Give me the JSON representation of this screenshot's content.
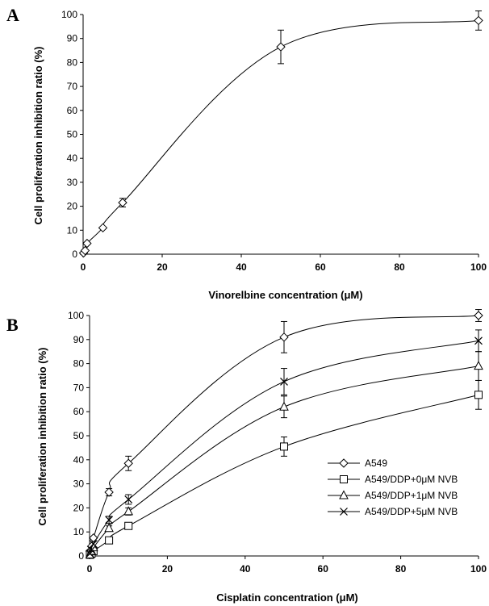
{
  "chart_data": [
    {
      "type": "line",
      "panel_label": "A",
      "title": "",
      "xlabel": "Vinorelbine concentration (μM)",
      "ylabel": "Cell proliferation inhibition ratio (%)",
      "xlim": [
        0,
        100
      ],
      "ylim": [
        0,
        100
      ],
      "xticks": [
        0,
        20,
        40,
        60,
        80,
        100
      ],
      "yticks": [
        0,
        10,
        20,
        30,
        40,
        50,
        60,
        70,
        80,
        90,
        100
      ],
      "grid": false,
      "legend": "none",
      "series": [
        {
          "marker": "diamond",
          "x": [
            0.1,
            0.5,
            1,
            5,
            10,
            50,
            100
          ],
          "y": [
            0.5,
            1.5,
            4.5,
            11,
            21.5,
            86.5,
            97.5
          ],
          "err": [
            0,
            0,
            0,
            0,
            1.8,
            7,
            4
          ]
        }
      ]
    },
    {
      "type": "line",
      "panel_label": "B",
      "title": "",
      "xlabel": "Cisplatin concentration (μM)",
      "ylabel": "Cell proliferation inhibition ratio (%)",
      "xlim": [
        0,
        100
      ],
      "ylim": [
        0,
        100
      ],
      "xticks": [
        0,
        20,
        40,
        60,
        80,
        100
      ],
      "yticks": [
        0,
        10,
        20,
        30,
        40,
        50,
        60,
        70,
        80,
        90,
        100
      ],
      "grid": false,
      "legend": "center-right",
      "series": [
        {
          "name": "A549",
          "marker": "diamond",
          "x": [
            0.1,
            0.5,
            1,
            5,
            10,
            50,
            100
          ],
          "y": [
            2,
            4,
            7.5,
            26.5,
            38.5,
            91,
            100
          ],
          "err": [
            0,
            0,
            0,
            1.5,
            3,
            6.5,
            2.5
          ]
        },
        {
          "name": "A549/DDP+0μM NVB",
          "marker": "square",
          "x": [
            0.1,
            0.5,
            1,
            5,
            10,
            50,
            100
          ],
          "y": [
            0.5,
            1,
            2,
            6.5,
            12.5,
            45.5,
            67
          ],
          "err": [
            0,
            0,
            0,
            0.5,
            1,
            4,
            6
          ]
        },
        {
          "name": "A549/DDP+1μM NVB",
          "marker": "triangle",
          "x": [
            0.1,
            0.5,
            1,
            5,
            10,
            50,
            100
          ],
          "y": [
            0.5,
            2,
            3.5,
            11.5,
            18.5,
            62,
            79
          ],
          "err": [
            0,
            0,
            0,
            1,
            1.5,
            4.5,
            6
          ]
        },
        {
          "name": "A549/DDP+5μM NVB",
          "marker": "x",
          "x": [
            0.1,
            0.5,
            1,
            5,
            10,
            50,
            100
          ],
          "y": [
            1,
            2.5,
            5,
            15,
            23.5,
            72.5,
            89.5
          ],
          "err": [
            0,
            0,
            0,
            1.5,
            2,
            5.5,
            4.5
          ]
        }
      ]
    }
  ]
}
